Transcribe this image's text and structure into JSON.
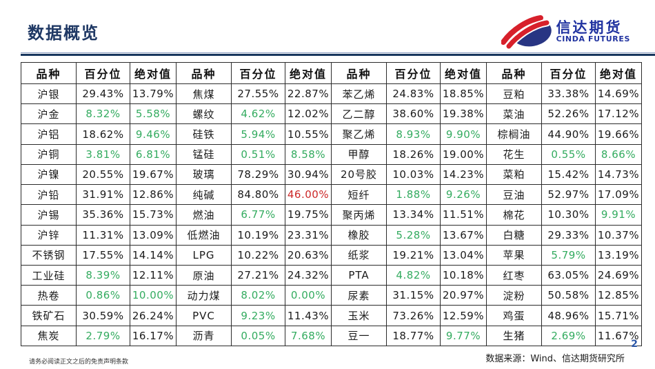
{
  "page": {
    "title": "数据概览",
    "page_number": "2"
  },
  "logo": {
    "name_cn": "信达期货",
    "name_en": "CINDA FUTURES"
  },
  "colors": {
    "title_navy": "#1f3864",
    "value_green": "#33ab5f",
    "value_red": "#cc2727",
    "value_black": "#1a1a1a",
    "logo_blue": "#2133a0",
    "logo_red": "#d7202b"
  },
  "table": {
    "column_headers": [
      "品种",
      "百分位",
      "绝对值"
    ],
    "groups": [
      {
        "rows": [
          [
            "沪银",
            "29.43%",
            "13.79%",
            "k",
            "k"
          ],
          [
            "沪金",
            "8.32%",
            "5.58%",
            "g",
            "g"
          ],
          [
            "沪铝",
            "18.62%",
            "9.46%",
            "k",
            "g"
          ],
          [
            "沪铜",
            "3.81%",
            "6.81%",
            "g",
            "g"
          ],
          [
            "沪镍",
            "20.55%",
            "19.67%",
            "k",
            "k"
          ],
          [
            "沪铅",
            "31.91%",
            "12.86%",
            "k",
            "k"
          ],
          [
            "沪锡",
            "35.36%",
            "15.73%",
            "k",
            "k"
          ],
          [
            "沪锌",
            "11.31%",
            "13.09%",
            "k",
            "k"
          ],
          [
            "不锈钢",
            "17.55%",
            "14.14%",
            "k",
            "k"
          ],
          [
            "工业硅",
            "8.39%",
            "12.11%",
            "g",
            "k"
          ],
          [
            "热卷",
            "0.86%",
            "10.00%",
            "g",
            "g"
          ],
          [
            "铁矿石",
            "30.59%",
            "26.24%",
            "k",
            "k"
          ],
          [
            "焦炭",
            "2.79%",
            "16.17%",
            "g",
            "k"
          ]
        ]
      },
      {
        "rows": [
          [
            "焦煤",
            "27.55%",
            "22.87%",
            "k",
            "k"
          ],
          [
            "螺纹",
            "4.62%",
            "12.02%",
            "g",
            "k"
          ],
          [
            "硅铁",
            "5.94%",
            "10.55%",
            "g",
            "k"
          ],
          [
            "锰硅",
            "0.51%",
            "8.58%",
            "g",
            "g"
          ],
          [
            "玻璃",
            "78.29%",
            "30.94%",
            "k",
            "k"
          ],
          [
            "纯碱",
            "84.80%",
            "46.00%",
            "k",
            "r"
          ],
          [
            "燃油",
            "6.77%",
            "19.75%",
            "g",
            "k"
          ],
          [
            "低燃油",
            "10.19%",
            "23.31%",
            "k",
            "k"
          ],
          [
            "LPG",
            "10.22%",
            "20.63%",
            "k",
            "k"
          ],
          [
            "原油",
            "27.21%",
            "24.32%",
            "k",
            "k"
          ],
          [
            "动力煤",
            "8.02%",
            "0.00%",
            "g",
            "g"
          ],
          [
            "PVC",
            "9.23%",
            "11.43%",
            "g",
            "k"
          ],
          [
            "沥青",
            "0.05%",
            "7.68%",
            "g",
            "g"
          ]
        ]
      },
      {
        "rows": [
          [
            "苯乙烯",
            "24.83%",
            "18.85%",
            "k",
            "k"
          ],
          [
            "乙二醇",
            "38.60%",
            "19.38%",
            "k",
            "k"
          ],
          [
            "聚乙烯",
            "8.93%",
            "9.90%",
            "g",
            "g"
          ],
          [
            "甲醇",
            "18.26%",
            "19.00%",
            "k",
            "k"
          ],
          [
            "20号胶",
            "10.03%",
            "14.23%",
            "k",
            "k"
          ],
          [
            "短纤",
            "1.88%",
            "9.26%",
            "g",
            "g"
          ],
          [
            "聚丙烯",
            "13.34%",
            "11.51%",
            "k",
            "k"
          ],
          [
            "橡胶",
            "5.28%",
            "13.67%",
            "g",
            "k"
          ],
          [
            "纸浆",
            "19.21%",
            "13.04%",
            "k",
            "k"
          ],
          [
            "PTA",
            "4.82%",
            "10.18%",
            "g",
            "k"
          ],
          [
            "尿素",
            "31.15%",
            "20.97%",
            "k",
            "k"
          ],
          [
            "玉米",
            "73.26%",
            "12.59%",
            "k",
            "k"
          ],
          [
            "豆一",
            "18.77%",
            "9.77%",
            "k",
            "g"
          ]
        ]
      },
      {
        "rows": [
          [
            "豆粕",
            "33.38%",
            "14.69%",
            "k",
            "k"
          ],
          [
            "菜油",
            "52.26%",
            "17.12%",
            "k",
            "k"
          ],
          [
            "棕榈油",
            "44.90%",
            "19.66%",
            "k",
            "k"
          ],
          [
            "花生",
            "0.55%",
            "8.66%",
            "g",
            "g"
          ],
          [
            "菜粕",
            "15.42%",
            "14.73%",
            "k",
            "k"
          ],
          [
            "豆油",
            "52.97%",
            "17.09%",
            "k",
            "k"
          ],
          [
            "棉花",
            "10.30%",
            "9.91%",
            "k",
            "g"
          ],
          [
            "白糖",
            "29.33%",
            "10.37%",
            "k",
            "k"
          ],
          [
            "苹果",
            "5.79%",
            "13.19%",
            "g",
            "k"
          ],
          [
            "红枣",
            "63.05%",
            "24.69%",
            "k",
            "k"
          ],
          [
            "淀粉",
            "50.58%",
            "12.85%",
            "k",
            "k"
          ],
          [
            "鸡蛋",
            "48.96%",
            "15.71%",
            "k",
            "k"
          ],
          [
            "生猪",
            "2.69%",
            "11.67%",
            "g",
            "k"
          ]
        ]
      }
    ]
  },
  "footer": {
    "disclaimer": "请务必阅读正文之后的免责声明条款",
    "source": "数据来源：Wind、信达期货研究所"
  }
}
